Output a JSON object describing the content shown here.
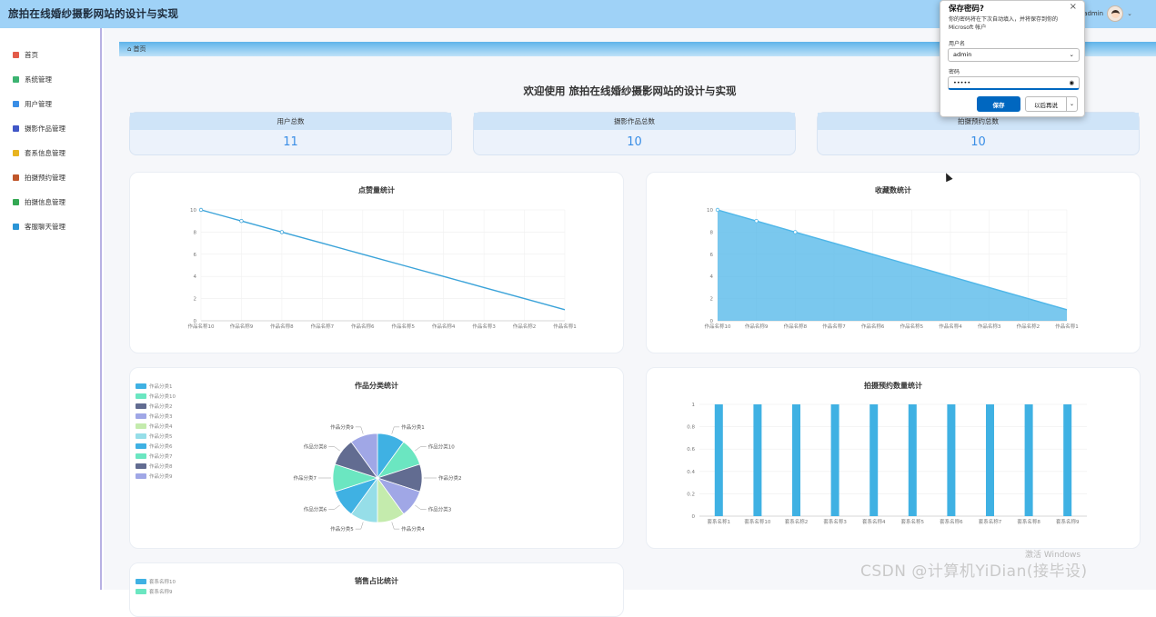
{
  "header": {
    "title": "旅拍在线婚纱摄影网站的设计与实现",
    "user": "admin",
    "avatar_icon": "avatar-icon"
  },
  "sidebar": {
    "items": [
      {
        "label": "首页",
        "icon": "home-icon",
        "color": "#e35c4a"
      },
      {
        "label": "系统管理",
        "icon": "system-icon",
        "color": "#3cb371"
      },
      {
        "label": "用户管理",
        "icon": "user-icon",
        "color": "#3a8ee6"
      },
      {
        "label": "摄影作品管理",
        "icon": "photo-icon",
        "color": "#4157c7"
      },
      {
        "label": "套系信息管理",
        "icon": "package-icon",
        "color": "#e8b420"
      },
      {
        "label": "拍摄预约管理",
        "icon": "calendar-icon",
        "color": "#c0562a"
      },
      {
        "label": "拍摄信息管理",
        "icon": "camera-icon",
        "color": "#34a853"
      },
      {
        "label": "客服聊天管理",
        "icon": "chat-icon",
        "color": "#2b95d6"
      }
    ]
  },
  "breadcrumb": {
    "label": "首页",
    "icon": "home-icon"
  },
  "welcome": "欢迎使用 旅拍在线婚纱摄影网站的设计与实现",
  "stats": [
    {
      "label": "用户总数",
      "value": "11"
    },
    {
      "label": "摄影作品总数",
      "value": "10"
    },
    {
      "label": "拍摄预约总数",
      "value": "10"
    }
  ],
  "chart_data": [
    {
      "type": "line",
      "title": "点赞量统计",
      "categories": [
        "作品名称10",
        "作品名称9",
        "作品名称8",
        "作品名称7",
        "作品名称6",
        "作品名称5",
        "作品名称4",
        "作品名称3",
        "作品名称2",
        "作品名称1"
      ],
      "values": [
        10,
        9,
        8,
        7,
        6,
        5,
        4,
        3,
        2,
        1
      ],
      "ylim": [
        0,
        10
      ],
      "yticks": [
        "0",
        "2",
        "4",
        "6",
        "8",
        "10"
      ],
      "color": "#3ba3d9"
    },
    {
      "type": "area",
      "title": "收藏数统计",
      "categories": [
        "作品名称10",
        "作品名称9",
        "作品名称8",
        "作品名称7",
        "作品名称6",
        "作品名称5",
        "作品名称4",
        "作品名称3",
        "作品名称2",
        "作品名称1"
      ],
      "values": [
        10,
        9,
        8,
        7,
        6,
        5,
        4,
        3,
        2,
        1
      ],
      "ylim": [
        0,
        10
      ],
      "yticks": [
        "0",
        "2",
        "4",
        "6",
        "8",
        "10"
      ],
      "color": "#4eb6e8"
    },
    {
      "type": "pie",
      "title": "作品分类统计",
      "categories": [
        "作品分类1",
        "作品分类10",
        "作品分类2",
        "作品分类3",
        "作品分类4",
        "作品分类5",
        "作品分类6",
        "作品分类7",
        "作品分类8",
        "作品分类9"
      ],
      "values": [
        1,
        1,
        1,
        1,
        1,
        1,
        1,
        1,
        1,
        1
      ],
      "colors": [
        "#3fb1e3",
        "#6be6c1",
        "#626c91",
        "#a0a7e6",
        "#c4ebad",
        "#96dee8",
        "#3fb1e3",
        "#6be6c1",
        "#626c91",
        "#a0a7e6"
      ],
      "legend": "top-left"
    },
    {
      "type": "bar",
      "title": "拍摄预约数量统计",
      "categories": [
        "套系名称1",
        "套系名称10",
        "套系名称2",
        "套系名称3",
        "套系名称4",
        "套系名称5",
        "套系名称6",
        "套系名称7",
        "套系名称8",
        "套系名称9"
      ],
      "values": [
        1,
        1,
        1,
        1,
        1,
        1,
        1,
        1,
        1,
        1
      ],
      "ylim": [
        0,
        1
      ],
      "yticks": [
        "0",
        "0.2",
        "0.4",
        "0.6",
        "0.8",
        "1"
      ],
      "color": "#3fb1e3"
    },
    {
      "type": "pie",
      "title": "销售占比统计",
      "categories": [
        "套系名称10",
        "套系名称9"
      ],
      "colors": [
        "#3fb1e3",
        "#6be6c1"
      ],
      "legend": "top-left"
    }
  ],
  "dialog": {
    "title": "保存密码?",
    "description": "你的密码将在下次自动填入，并将保存到你的 Microsoft 帐户",
    "username_label": "用户名",
    "username_value": "admin",
    "password_label": "密码",
    "password_value": "•••••",
    "save_label": "保存",
    "later_label": "以后再说",
    "more_label": "⌄"
  },
  "watermark": {
    "activate": "激活 Windows",
    "csdn": "CSDN @计算机YiDian(接毕设)"
  }
}
